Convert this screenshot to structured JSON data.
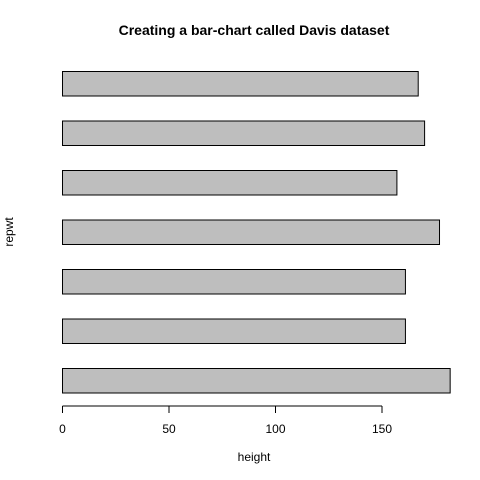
{
  "chart_data": {
    "type": "bar",
    "orientation": "horizontal",
    "title": "Creating a bar-chart called Davis dataset",
    "xlabel": "height",
    "ylabel": "repwt",
    "xlim": [
      0,
      180
    ],
    "xticks": [
      0,
      50,
      100,
      150
    ],
    "values": [
      182,
      161,
      161,
      177,
      157,
      170,
      167
    ],
    "bar_color": "#bebebe",
    "border_color": "#000000",
    "grid": false,
    "legend": "none"
  }
}
